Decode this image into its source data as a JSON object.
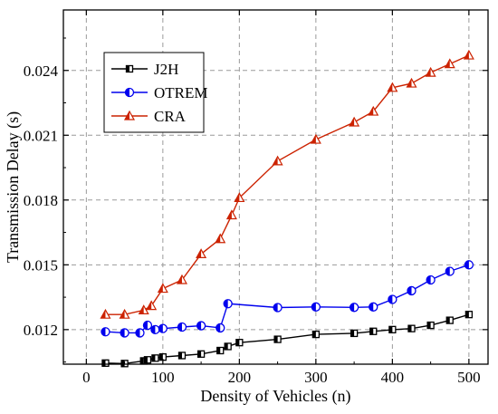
{
  "chart_data": {
    "type": "line",
    "title": "",
    "xlabel": "Density of Vehicles (n)",
    "ylabel": "Transmission Delay (s)",
    "xlim": [
      -30,
      525
    ],
    "ylim": [
      0.0104,
      0.0268
    ],
    "x_ticks": [
      0,
      100,
      200,
      300,
      400,
      500
    ],
    "y_ticks": [
      0.012,
      0.015,
      0.018,
      0.021,
      0.024
    ],
    "x_tick_labels": [
      "0",
      "100",
      "200",
      "300",
      "400",
      "500"
    ],
    "y_tick_labels": [
      "0.012",
      "0.015",
      "0.018",
      "0.021",
      "0.024"
    ],
    "grid": true,
    "legend_position": "top-left",
    "series": [
      {
        "name": "J2H",
        "color": "#000000",
        "marker": "square",
        "x": [
          25,
          50,
          75,
          80,
          90,
          100,
          125,
          150,
          175,
          185,
          200,
          250,
          300,
          350,
          375,
          400,
          425,
          450,
          475,
          500
        ],
        "y": [
          0.01045,
          0.01043,
          0.01055,
          0.0106,
          0.01068,
          0.01073,
          0.0108,
          0.01087,
          0.01103,
          0.01122,
          0.0114,
          0.01155,
          0.01178,
          0.01183,
          0.01192,
          0.012,
          0.01205,
          0.0122,
          0.01243,
          0.0127
        ]
      },
      {
        "name": "OTREM",
        "color": "#0000ee",
        "marker": "circle",
        "x": [
          25,
          50,
          70,
          80,
          90,
          100,
          125,
          150,
          175,
          185,
          250,
          300,
          350,
          375,
          400,
          425,
          450,
          475,
          500
        ],
        "y": [
          0.0119,
          0.01185,
          0.01185,
          0.0122,
          0.012,
          0.01205,
          0.01212,
          0.01218,
          0.01208,
          0.0132,
          0.01302,
          0.01305,
          0.01303,
          0.01305,
          0.0134,
          0.0138,
          0.0143,
          0.0147,
          0.015
        ]
      },
      {
        "name": "CRA",
        "color": "#cc2200",
        "marker": "triangle",
        "x": [
          25,
          50,
          75,
          85,
          100,
          125,
          150,
          175,
          190,
          200,
          250,
          300,
          350,
          375,
          400,
          425,
          450,
          475,
          500
        ],
        "y": [
          0.0127,
          0.0127,
          0.0129,
          0.0131,
          0.0139,
          0.0143,
          0.0155,
          0.0162,
          0.0173,
          0.0181,
          0.0198,
          0.0208,
          0.0216,
          0.0221,
          0.0232,
          0.0234,
          0.0239,
          0.0243,
          0.0247
        ]
      }
    ]
  }
}
